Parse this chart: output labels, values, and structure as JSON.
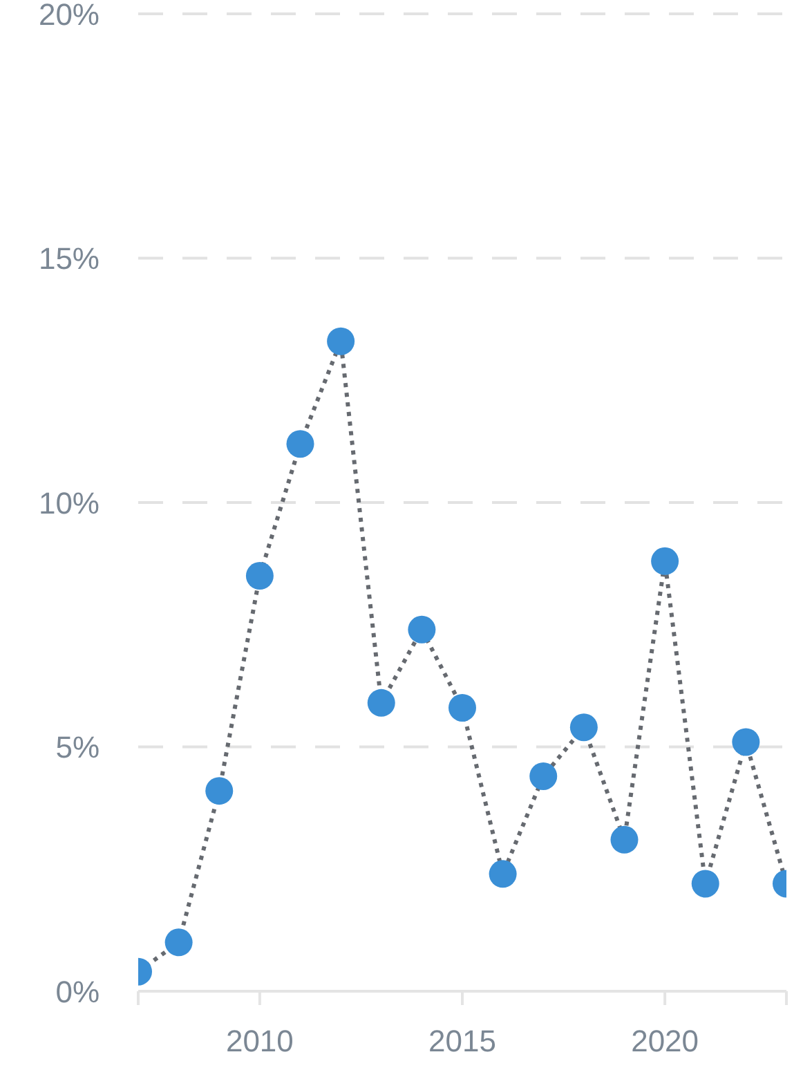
{
  "chart_data": {
    "type": "line",
    "x": [
      2007,
      2008,
      2009,
      2010,
      2011,
      2012,
      2013,
      2014,
      2015,
      2016,
      2017,
      2018,
      2019,
      2020,
      2021,
      2022,
      2023
    ],
    "series": [
      {
        "color": "#3a8fd6",
        "values": [
          0.4,
          1.0,
          4.1,
          8.5,
          11.2,
          13.3,
          5.9,
          7.4,
          5.8,
          2.4,
          4.4,
          5.4,
          3.1,
          8.8,
          2.2,
          5.1,
          2.2
        ]
      }
    ],
    "xlim": [
      2007,
      2023
    ],
    "xticks": [
      {
        "value": 2007,
        "label": null
      },
      2010,
      2015,
      2020,
      {
        "value": 2023,
        "label": null
      }
    ],
    "ylim": [
      0,
      20
    ],
    "yticks": [
      {
        "value": 0,
        "label": "0%"
      },
      {
        "value": 5,
        "label": "5%"
      },
      {
        "value": 10,
        "label": "10%"
      },
      {
        "value": 15,
        "label": "15%"
      },
      {
        "value": 20,
        "label": "20%"
      }
    ],
    "grid": "y",
    "marker": "circle",
    "line_style": "dotted"
  }
}
